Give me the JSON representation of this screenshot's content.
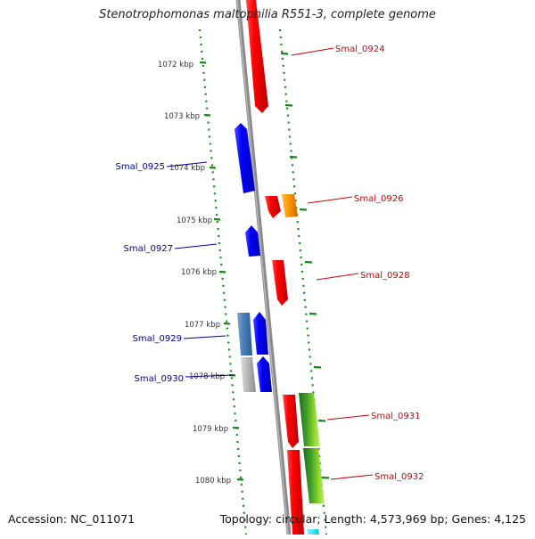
{
  "title": "Stenotrophomonas maltophilia R551-3, complete genome",
  "accession": "Accession: NC_011071",
  "topology": "Topology: circular; Length: 4,573,969 bp; Genes: 4,125",
  "colors": {
    "backbone": "#8a8a8a",
    "tick_ring": "#138a13",
    "forward_label": "#cc0000",
    "reverse_label": "#00009a"
  },
  "kbp_labels": [
    "1072 kbp",
    "1073 kbp",
    "1074 kbp",
    "1075 kbp",
    "1076 kbp",
    "1077 kbp",
    "1078 kbp",
    "1079 kbp",
    "1080 kbp"
  ],
  "genes": [
    {
      "name": "Smal_0924",
      "strand": "forward"
    },
    {
      "name": "Smal_0925",
      "strand": "reverse"
    },
    {
      "name": "Smal_0926",
      "strand": "forward"
    },
    {
      "name": "Smal_0927",
      "strand": "reverse"
    },
    {
      "name": "Smal_0928",
      "strand": "forward"
    },
    {
      "name": "Smal_0929",
      "strand": "reverse"
    },
    {
      "name": "Smal_0930",
      "strand": "reverse"
    },
    {
      "name": "Smal_0931",
      "strand": "forward"
    },
    {
      "name": "Smal_0932",
      "strand": "forward"
    }
  ]
}
